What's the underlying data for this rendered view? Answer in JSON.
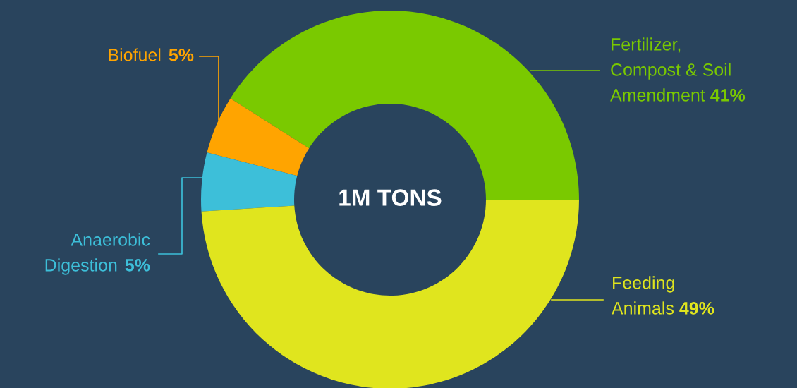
{
  "chart_data": {
    "type": "donut",
    "categories": [
      "Fertilizer,\nCompost & Soil\nAmendment",
      "Biofuel",
      "Anaerobic\nDigestion",
      "Feeding\nAnimals"
    ],
    "values": [
      41,
      5,
      5,
      49
    ],
    "colors": [
      "#7ac900",
      "#ffa400",
      "#3dbfd9",
      "#e0e51e"
    ],
    "value_labels": [
      "41%",
      "5%",
      "5%",
      "49%"
    ],
    "annotations": [
      "1M TONS"
    ]
  }
}
